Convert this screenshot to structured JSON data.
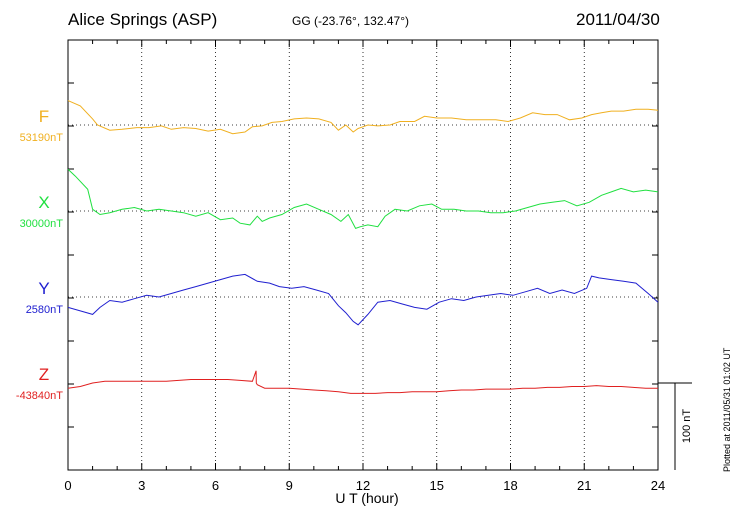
{
  "header": {
    "station": "Alice Springs (ASP)",
    "coords": "GG (-23.76°, 132.47°)",
    "date": "2011/04/30"
  },
  "footer": {
    "plotted": "Plotted at 2011/05/31 01:02 UT"
  },
  "chart_data": {
    "type": "line",
    "title": "Alice Springs (ASP)",
    "xlabel": "U T (hour)",
    "xlim": [
      0,
      24
    ],
    "xticks": [
      "0",
      "3",
      "6",
      "9",
      "12",
      "15",
      "18",
      "21",
      "24"
    ],
    "grid": true,
    "scale_bar": {
      "label": "100 nT",
      "value": 100
    },
    "series": [
      {
        "name": "F",
        "baseline_label": "53190nT",
        "color": "#f0b020",
        "x": [
          0,
          0.5,
          1,
          1.2,
          1.7,
          2.2,
          2.8,
          3.3,
          3.8,
          4.2,
          4.7,
          5.2,
          5.7,
          6.2,
          6.7,
          7.2,
          7.5,
          7.9,
          8.3,
          8.7,
          9.2,
          9.7,
          10.2,
          10.7,
          11,
          11.3,
          11.6,
          11.8,
          12.2,
          12.6,
          13.1,
          13.5,
          14.1,
          14.5,
          15,
          15.6,
          16.2,
          16.8,
          17.4,
          17.9,
          18.4,
          18.9,
          19.4,
          19.9,
          20.4,
          20.9,
          21.3,
          21.7,
          22.1,
          22.6,
          23.1,
          23.6,
          24
        ],
        "y": [
          28,
          22,
          7,
          0,
          -6,
          -5,
          -3,
          -3,
          -1,
          -5,
          -3,
          -4,
          -7,
          -5,
          -10,
          -8,
          -2,
          -1,
          3,
          4,
          7,
          8,
          7,
          3,
          -6,
          0,
          -8,
          -4,
          0,
          -1,
          0,
          4,
          4,
          10,
          8,
          8,
          6,
          6,
          6,
          4,
          8,
          14,
          12,
          12,
          6,
          8,
          12,
          14,
          16,
          16,
          18,
          18,
          17
        ]
      },
      {
        "name": "X",
        "baseline_label": "30000nT",
        "color": "#20e040",
        "x": [
          0,
          0.3,
          0.8,
          1,
          1.3,
          1.7,
          2.2,
          2.7,
          3.2,
          3.7,
          4.2,
          4.7,
          5.2,
          5.7,
          6.2,
          6.7,
          7,
          7.4,
          7.7,
          7.9,
          8.2,
          8.7,
          9.2,
          9.7,
          10.2,
          10.7,
          11.1,
          11.4,
          11.7,
          11.9,
          12.2,
          12.6,
          12.9,
          13.3,
          13.8,
          14.3,
          14.8,
          15.2,
          15.7,
          16.2,
          16.7,
          17.2,
          17.7,
          18.2,
          18.7,
          19.2,
          19.7,
          20.2,
          20.7,
          21.2,
          21.7,
          22.1,
          22.5,
          23,
          23.5,
          24
        ],
        "y": [
          48,
          40,
          25,
          2,
          -4,
          -2,
          2,
          4,
          0,
          2,
          0,
          -2,
          -6,
          -2,
          -10,
          -8,
          -14,
          -16,
          -6,
          -12,
          -8,
          -4,
          4,
          8,
          2,
          -4,
          -12,
          -4,
          -20,
          -18,
          -16,
          -18,
          -6,
          2,
          0,
          6,
          8,
          2,
          2,
          0,
          0,
          -2,
          -2,
          0,
          4,
          8,
          10,
          12,
          6,
          10,
          18,
          22,
          26,
          22,
          24,
          22
        ]
      },
      {
        "name": "Y",
        "baseline_label": "2580nT",
        "color": "#2020d0",
        "x": [
          0,
          0.5,
          1,
          1.3,
          1.7,
          2.2,
          2.7,
          3.2,
          3.7,
          4.2,
          4.7,
          5.2,
          5.7,
          6.2,
          6.7,
          7.2,
          7.7,
          8.2,
          8.6,
          9.1,
          9.6,
          10.1,
          10.6,
          11,
          11.3,
          11.6,
          11.8,
          12.2,
          12.6,
          13.1,
          13.6,
          14.1,
          14.6,
          15.1,
          15.6,
          16.1,
          16.6,
          17.1,
          17.6,
          18.1,
          18.6,
          19.1,
          19.6,
          20.1,
          20.6,
          21.1,
          21.3,
          21.6,
          22.1,
          22.6,
          23.1,
          23.6,
          24
        ],
        "y": [
          -12,
          -16,
          -20,
          -12,
          -4,
          -6,
          -2,
          2,
          0,
          4,
          8,
          12,
          16,
          20,
          24,
          26,
          18,
          16,
          12,
          10,
          12,
          8,
          4,
          -10,
          -18,
          -28,
          -32,
          -20,
          -6,
          -4,
          -8,
          -12,
          -14,
          -6,
          -2,
          -4,
          0,
          2,
          4,
          2,
          6,
          10,
          4,
          8,
          4,
          10,
          24,
          22,
          20,
          18,
          16,
          4,
          -6
        ]
      },
      {
        "name": "Z",
        "baseline_label": "-43840nT",
        "color": "#e02020",
        "x": [
          0,
          0.5,
          1,
          1.5,
          2,
          2.5,
          3,
          3.5,
          4,
          4.5,
          5,
          5.5,
          6,
          6.5,
          7,
          7.5,
          7.65,
          7.66,
          7.7,
          8,
          8.5,
          9,
          9.5,
          10,
          10.5,
          11,
          11.5,
          12,
          12.5,
          13,
          13.5,
          14,
          14.5,
          15,
          15.5,
          16,
          16.5,
          17,
          17.5,
          18,
          18.5,
          19,
          19.5,
          20,
          20.5,
          21,
          21.5,
          22,
          22.5,
          23,
          23.5,
          24
        ],
        "y": [
          -6,
          -4,
          0,
          2,
          2,
          2,
          2,
          2,
          2,
          3,
          4,
          4,
          4,
          4,
          3,
          2,
          14,
          0,
          -2,
          -6,
          -6,
          -6,
          -7,
          -8,
          -9,
          -10,
          -12,
          -12,
          -12,
          -11,
          -11,
          -10,
          -10,
          -10,
          -9,
          -8,
          -8,
          -7,
          -7,
          -7,
          -6,
          -6,
          -5,
          -5,
          -4,
          -4,
          -3,
          -4,
          -4,
          -5,
          -6,
          -6
        ]
      }
    ]
  }
}
